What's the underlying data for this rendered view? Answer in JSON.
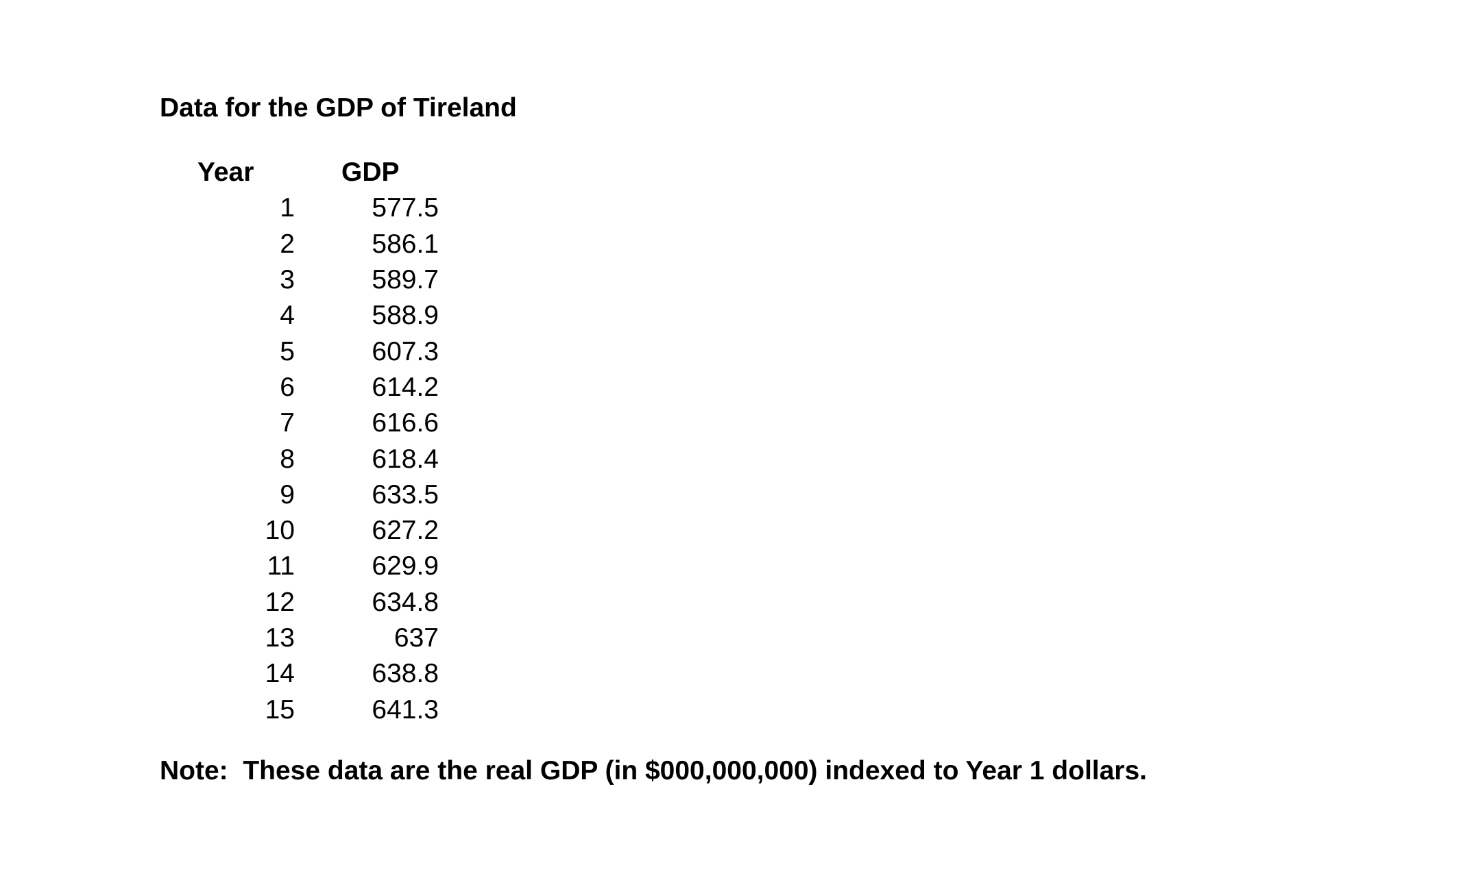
{
  "page": {
    "background": "#ffffff",
    "text_color": "#000000",
    "title": "Data for the GDP of Tireland",
    "note": "Note:  These data are the real GDP (in $000,000,000) indexed to Year 1 dollars."
  },
  "table": {
    "headers": {
      "year": "Year",
      "gdp": "GDP"
    },
    "rows": [
      {
        "year": "1",
        "gdp": "577.5"
      },
      {
        "year": "2",
        "gdp": "586.1"
      },
      {
        "year": "3",
        "gdp": "589.7"
      },
      {
        "year": "4",
        "gdp": "588.9"
      },
      {
        "year": "5",
        "gdp": "607.3"
      },
      {
        "year": "6",
        "gdp": "614.2"
      },
      {
        "year": "7",
        "gdp": "616.6"
      },
      {
        "year": "8",
        "gdp": "618.4"
      },
      {
        "year": "9",
        "gdp": "633.5"
      },
      {
        "year": "10",
        "gdp": "627.2"
      },
      {
        "year": "11",
        "gdp": "629.9"
      },
      {
        "year": "12",
        "gdp": "634.8"
      },
      {
        "year": "13",
        "gdp": "637"
      },
      {
        "year": "14",
        "gdp": "638.8"
      },
      {
        "year": "15",
        "gdp": "641.3"
      }
    ]
  },
  "chart_data": {
    "type": "table",
    "title": "Data for the GDP of Tireland",
    "columns": [
      "Year",
      "GDP"
    ],
    "x": [
      1,
      2,
      3,
      4,
      5,
      6,
      7,
      8,
      9,
      10,
      11,
      12,
      13,
      14,
      15
    ],
    "values": [
      577.5,
      586.1,
      589.7,
      588.9,
      607.3,
      614.2,
      616.6,
      618.4,
      633.5,
      627.2,
      629.9,
      634.8,
      637,
      638.8,
      641.3
    ],
    "note": "Note:  These data are the real GDP (in $000,000,000) indexed to Year 1 dollars."
  }
}
